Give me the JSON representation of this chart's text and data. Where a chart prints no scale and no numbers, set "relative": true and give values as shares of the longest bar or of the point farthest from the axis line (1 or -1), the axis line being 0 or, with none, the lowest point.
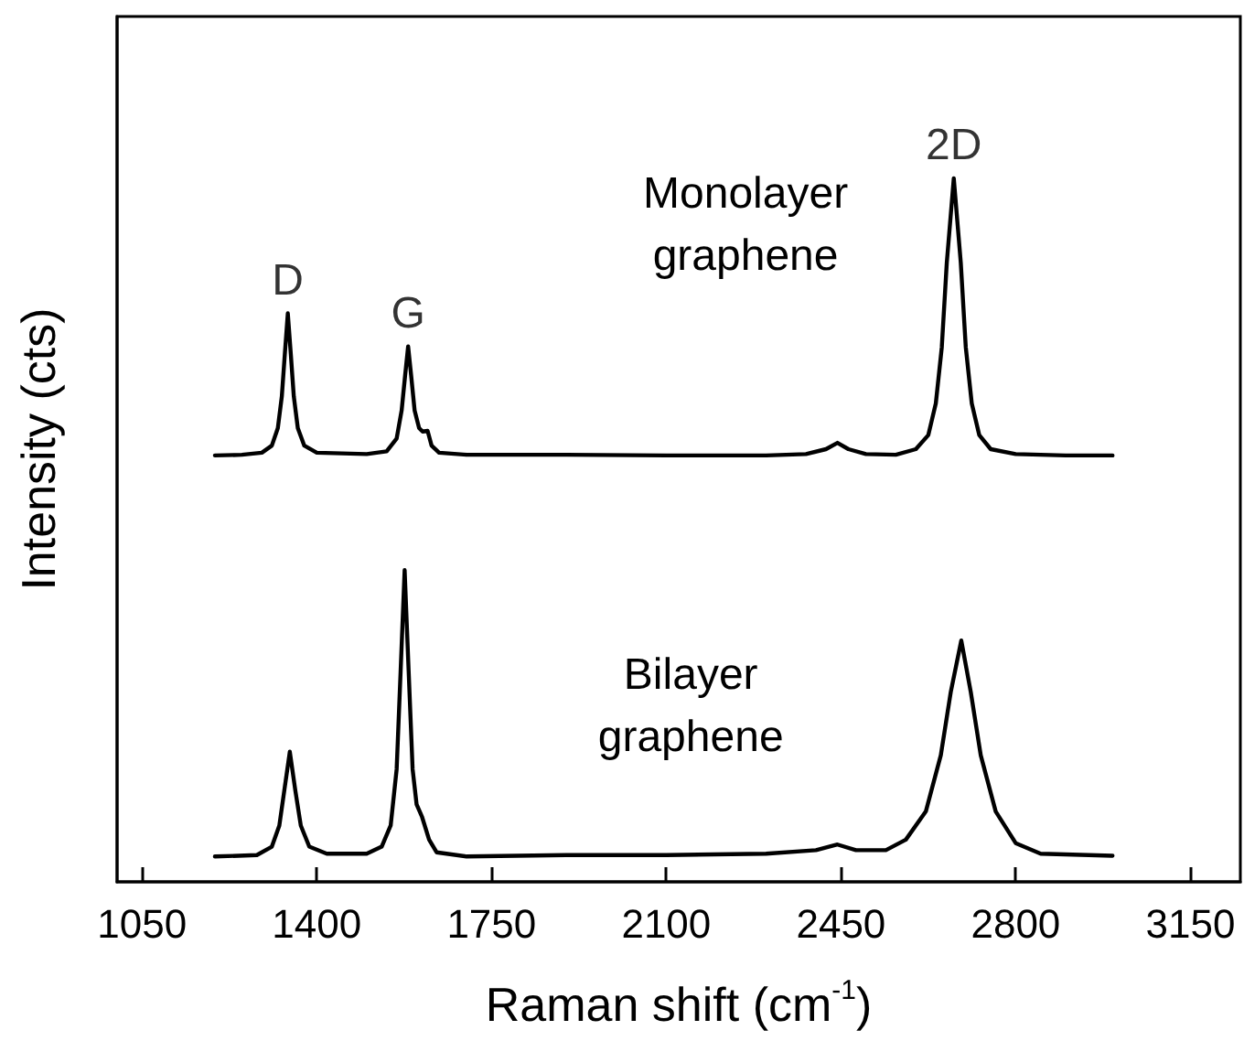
{
  "chart_data": {
    "type": "line",
    "xlabel": "Raman shift (cm$^{-1}$)",
    "ylabel": "Intensity (cts)",
    "relative": true,
    "xlim": [
      1000,
      3250
    ],
    "xticks": [
      1050,
      1400,
      1750,
      2100,
      2450,
      2800,
      3150
    ],
    "tick_labels": "x",
    "grid": false,
    "marker": "none",
    "line_style": "solid",
    "annotations": [
      {
        "text": "D",
        "x": 1342,
        "y": 0.808
      },
      {
        "text": "G",
        "x": 1583,
        "y": 0.761
      },
      {
        "text": "2D",
        "x": 2676,
        "y": 1.0
      }
    ],
    "series": [
      {
        "name": "Monolayer graphene",
        "color": "#000000",
        "x": [
          1196,
          1250,
          1290,
          1310,
          1322,
          1330,
          1336,
          1342,
          1348,
          1354,
          1362,
          1375,
          1400,
          1500,
          1540,
          1560,
          1570,
          1577,
          1583,
          1589,
          1596,
          1605,
          1612,
          1622,
          1630,
          1645,
          1700,
          1900,
          2100,
          2300,
          2380,
          2420,
          2443,
          2465,
          2500,
          2560,
          2600,
          2625,
          2640,
          2652,
          2662,
          2676,
          2690,
          2700,
          2712,
          2727,
          2750,
          2800,
          2900,
          2994
        ],
        "values": [
          0.606,
          0.607,
          0.61,
          0.62,
          0.645,
          0.69,
          0.75,
          0.808,
          0.75,
          0.69,
          0.645,
          0.62,
          0.61,
          0.608,
          0.612,
          0.63,
          0.67,
          0.72,
          0.761,
          0.72,
          0.67,
          0.645,
          0.64,
          0.641,
          0.62,
          0.61,
          0.607,
          0.607,
          0.606,
          0.606,
          0.608,
          0.615,
          0.624,
          0.615,
          0.608,
          0.607,
          0.615,
          0.635,
          0.68,
          0.76,
          0.88,
          1.0,
          0.88,
          0.76,
          0.68,
          0.635,
          0.615,
          0.608,
          0.606,
          0.606
        ]
      },
      {
        "name": "Bilayer graphene",
        "color": "#000000",
        "x": [
          1196,
          1280,
          1310,
          1325,
          1335,
          1346,
          1357,
          1368,
          1385,
          1420,
          1500,
          1530,
          1548,
          1560,
          1568,
          1576,
          1584,
          1592,
          1600,
          1611,
          1625,
          1640,
          1700,
          1900,
          2100,
          2300,
          2400,
          2443,
          2480,
          2540,
          2580,
          2620,
          2650,
          2670,
          2691,
          2710,
          2730,
          2760,
          2800,
          2850,
          2994
        ],
        "values": [
          0.036,
          0.038,
          0.05,
          0.08,
          0.13,
          0.185,
          0.13,
          0.08,
          0.05,
          0.04,
          0.04,
          0.05,
          0.08,
          0.16,
          0.3,
          0.443,
          0.3,
          0.16,
          0.11,
          0.092,
          0.06,
          0.042,
          0.036,
          0.038,
          0.038,
          0.04,
          0.045,
          0.053,
          0.045,
          0.045,
          0.06,
          0.1,
          0.18,
          0.27,
          0.343,
          0.27,
          0.18,
          0.1,
          0.055,
          0.04,
          0.037
        ]
      }
    ]
  }
}
